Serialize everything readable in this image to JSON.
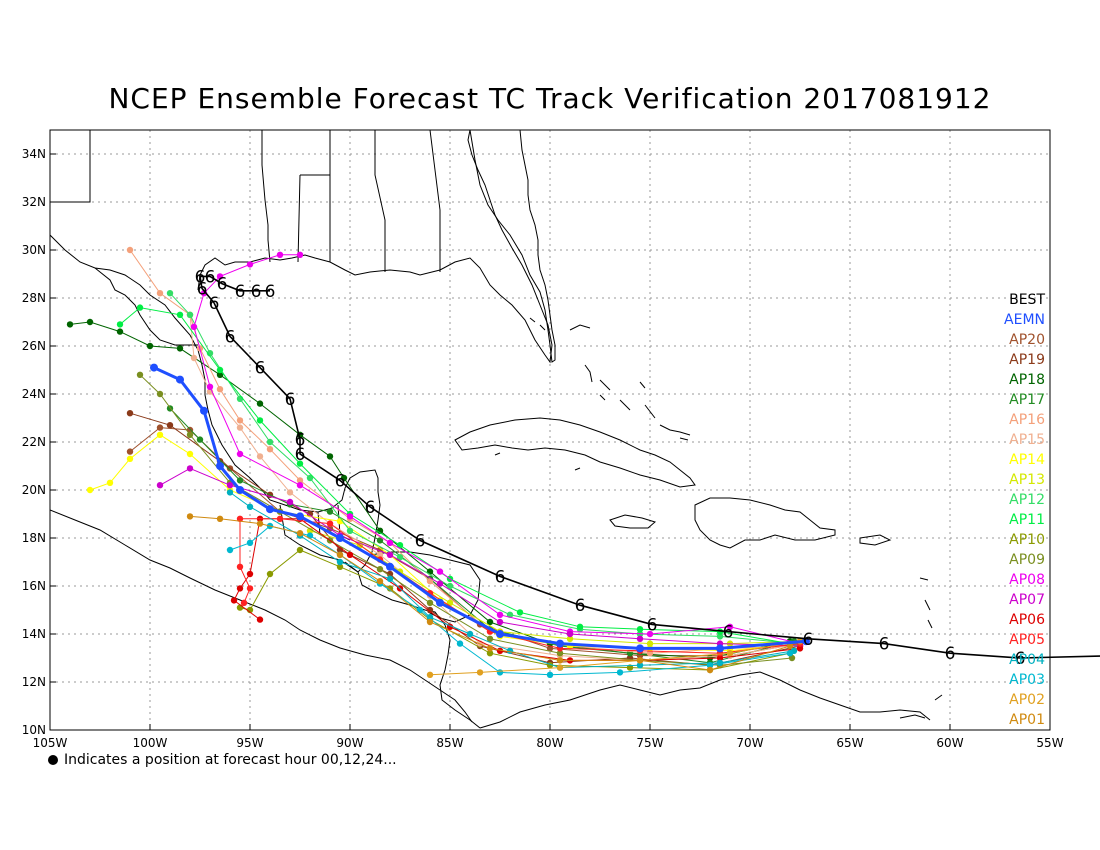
{
  "title": "NCEP Ensemble Forecast TC Track Verification 2017081912",
  "footnote": "Indicates a position at forecast hour 00,12,24...",
  "axes": {
    "lon_ticks": [
      "105W",
      "100W",
      "95W",
      "90W",
      "85W",
      "80W",
      "75W",
      "70W",
      "65W",
      "60W",
      "55W"
    ],
    "lat_ticks": [
      "10N",
      "12N",
      "14N",
      "16N",
      "18N",
      "20N",
      "22N",
      "24N",
      "26N",
      "28N",
      "30N",
      "32N",
      "34N"
    ],
    "lon_range": [
      -105,
      -55
    ],
    "lat_range": [
      10,
      35
    ],
    "grid": true
  },
  "legend": [
    {
      "label": "BEST",
      "color": "#000000"
    },
    {
      "label": "AEMN",
      "color": "#1f4fff"
    },
    {
      "label": "AP20",
      "color": "#a0522d"
    },
    {
      "label": "AP19",
      "color": "#8b3a1a"
    },
    {
      "label": "AP18",
      "color": "#006400"
    },
    {
      "label": "AP17",
      "color": "#228b22"
    },
    {
      "label": "AP16",
      "color": "#f4a07a"
    },
    {
      "label": "AP15",
      "color": "#f0b090"
    },
    {
      "label": "AP14",
      "color": "#ffff00"
    },
    {
      "label": "AP13",
      "color": "#d4e800"
    },
    {
      "label": "AP12",
      "color": "#33dd66"
    },
    {
      "label": "AP11",
      "color": "#00ee44"
    },
    {
      "label": "AP10",
      "color": "#8a9a00"
    },
    {
      "label": "AP09",
      "color": "#7a8f20"
    },
    {
      "label": "AP08",
      "color": "#ee00ee"
    },
    {
      "label": "AP07",
      "color": "#cc00cc"
    },
    {
      "label": "AP06",
      "color": "#dd0000"
    },
    {
      "label": "AP05",
      "color": "#ff2222"
    },
    {
      "label": "AP04",
      "color": "#00b0c0"
    },
    {
      "label": "AP03",
      "color": "#00b8d0"
    },
    {
      "label": "AP02",
      "color": "#e0a020"
    },
    {
      "label": "AP01",
      "color": "#d08a10"
    }
  ],
  "best_track": {
    "color": "#000000",
    "points": [
      [
        -51.5,
        13.1
      ],
      [
        -56.5,
        13.0
      ],
      [
        -60.0,
        13.2
      ],
      [
        -63.3,
        13.6
      ],
      [
        -67.1,
        13.8
      ],
      [
        -71.1,
        14.1
      ],
      [
        -74.9,
        14.4
      ],
      [
        -78.5,
        15.2
      ],
      [
        -82.5,
        16.4
      ],
      [
        -86.5,
        17.9
      ],
      [
        -89.0,
        19.3
      ],
      [
        -90.5,
        20.4
      ],
      [
        -92.5,
        21.5
      ],
      [
        -92.5,
        22.1
      ],
      [
        -93.0,
        23.8
      ],
      [
        -94.5,
        25.1
      ],
      [
        -96.0,
        26.4
      ],
      [
        -96.8,
        27.8
      ],
      [
        -97.4,
        28.4
      ],
      [
        -97.5,
        28.9
      ],
      [
        -97.0,
        28.9
      ],
      [
        -96.4,
        28.6
      ],
      [
        -95.5,
        28.3
      ],
      [
        -94.7,
        28.3
      ],
      [
        -94.0,
        28.3
      ]
    ]
  },
  "ensemble_tracks": [
    {
      "name": "AEMN",
      "color": "#1f4fff",
      "points": [
        [
          -67.2,
          13.7
        ],
        [
          -71.5,
          13.4
        ],
        [
          -75.5,
          13.4
        ],
        [
          -79.5,
          13.6
        ],
        [
          -82.5,
          14.0
        ],
        [
          -85.5,
          15.3
        ],
        [
          -88.0,
          16.8
        ],
        [
          -90.5,
          18.0
        ],
        [
          -92.5,
          18.9
        ],
        [
          -94.0,
          19.2
        ],
        [
          -95.5,
          20.0
        ],
        [
          -96.5,
          21.0
        ],
        [
          -97.3,
          23.3
        ],
        [
          -98.5,
          24.6
        ],
        [
          -99.8,
          25.1
        ]
      ]
    },
    {
      "name": "AP20",
      "color": "#a0522d",
      "points": [
        [
          -67.5,
          13.6
        ],
        [
          -71.0,
          13.1
        ],
        [
          -75.5,
          13.1
        ],
        [
          -80.0,
          13.4
        ],
        [
          -83.5,
          14.4
        ],
        [
          -86.0,
          16.3
        ],
        [
          -88.5,
          17.5
        ],
        [
          -91.0,
          18.4
        ],
        [
          -93.5,
          19.1
        ],
        [
          -96.0,
          20.9
        ],
        [
          -98.0,
          22.5
        ],
        [
          -99.5,
          22.6
        ],
        [
          -101.0,
          21.6
        ]
      ]
    },
    {
      "name": "AP19",
      "color": "#8b3a1a",
      "points": [
        [
          -67.5,
          13.5
        ],
        [
          -72.0,
          12.7
        ],
        [
          -76.0,
          13.0
        ],
        [
          -80.0,
          12.8
        ],
        [
          -83.5,
          13.5
        ],
        [
          -86.0,
          15.0
        ],
        [
          -88.0,
          16.5
        ],
        [
          -90.5,
          17.5
        ],
        [
          -92.0,
          19.0
        ],
        [
          -94.0,
          19.8
        ],
        [
          -96.5,
          21.2
        ],
        [
          -99.0,
          22.7
        ],
        [
          -101.0,
          23.2
        ]
      ]
    },
    {
      "name": "AP18",
      "color": "#006400",
      "points": [
        [
          -68.0,
          13.7
        ],
        [
          -72.0,
          13.0
        ],
        [
          -76.0,
          13.2
        ],
        [
          -80.0,
          13.6
        ],
        [
          -83.0,
          14.5
        ],
        [
          -86.0,
          16.6
        ],
        [
          -88.5,
          18.3
        ],
        [
          -90.3,
          20.5
        ],
        [
          -91.0,
          21.4
        ],
        [
          -92.5,
          22.3
        ],
        [
          -94.5,
          23.6
        ],
        [
          -96.5,
          24.8
        ],
        [
          -98.5,
          25.9
        ],
        [
          -100.0,
          26.0
        ],
        [
          -101.5,
          26.6
        ],
        [
          -103.0,
          27.0
        ],
        [
          -104.0,
          26.9
        ]
      ]
    },
    {
      "name": "AP17",
      "color": "#228b22",
      "points": [
        [
          -67.8,
          13.7
        ],
        [
          -72.0,
          12.8
        ],
        [
          -76.0,
          13.2
        ],
        [
          -79.5,
          13.5
        ],
        [
          -83.0,
          14.2
        ],
        [
          -86.0,
          16.3
        ],
        [
          -88.5,
          17.9
        ],
        [
          -91.0,
          19.1
        ],
        [
          -93.0,
          19.4
        ],
        [
          -95.5,
          20.4
        ],
        [
          -97.5,
          22.1
        ],
        [
          -99.0,
          23.4
        ]
      ]
    },
    {
      "name": "AP16",
      "color": "#f4a07a",
      "points": [
        [
          -67.5,
          13.5
        ],
        [
          -71.0,
          13.4
        ],
        [
          -75.0,
          13.2
        ],
        [
          -79.0,
          13.5
        ],
        [
          -83.0,
          14.1
        ],
        [
          -86.0,
          16.2
        ],
        [
          -88.0,
          17.8
        ],
        [
          -90.0,
          18.8
        ],
        [
          -92.5,
          20.4
        ],
        [
          -94.0,
          21.7
        ],
        [
          -95.5,
          22.9
        ],
        [
          -96.5,
          24.2
        ],
        [
          -97.5,
          25.9
        ],
        [
          -98.0,
          27.3
        ],
        [
          -99.5,
          28.2
        ],
        [
          -101.0,
          30.0
        ]
      ]
    },
    {
      "name": "AP15",
      "color": "#f0b090",
      "points": [
        [
          -67.5,
          13.6
        ],
        [
          -71.0,
          13.1
        ],
        [
          -75.5,
          12.9
        ],
        [
          -79.5,
          13.1
        ],
        [
          -83.5,
          13.6
        ],
        [
          -86.0,
          15.6
        ],
        [
          -88.5,
          17.3
        ],
        [
          -91.0,
          18.6
        ],
        [
          -93.0,
          19.9
        ],
        [
          -94.5,
          21.4
        ],
        [
          -95.5,
          22.6
        ],
        [
          -97.0,
          24.1
        ],
        [
          -97.8,
          25.5
        ],
        [
          -98.0,
          27.3
        ]
      ]
    },
    {
      "name": "AP14",
      "color": "#ffff00",
      "points": [
        [
          -67.5,
          13.6
        ],
        [
          -71.0,
          13.3
        ],
        [
          -75.0,
          13.4
        ],
        [
          -79.0,
          13.5
        ],
        [
          -82.5,
          13.9
        ],
        [
          -85.5,
          15.4
        ],
        [
          -88.0,
          17.3
        ],
        [
          -90.5,
          18.7
        ],
        [
          -93.5,
          19.1
        ],
        [
          -96.0,
          20.0
        ],
        [
          -98.0,
          21.5
        ],
        [
          -99.5,
          22.3
        ],
        [
          -101.0,
          21.3
        ],
        [
          -102.0,
          20.3
        ],
        [
          -103.0,
          20.0
        ]
      ]
    },
    {
      "name": "AP13",
      "color": "#d4e800",
      "points": [
        [
          -67.5,
          13.7
        ],
        [
          -71.0,
          13.6
        ],
        [
          -75.0,
          13.6
        ],
        [
          -79.0,
          13.8
        ],
        [
          -82.5,
          14.1
        ],
        [
          -85.0,
          15.3
        ],
        [
          -87.5,
          16.6
        ],
        [
          -89.5,
          17.7
        ],
        [
          -92.0,
          18.3
        ]
      ]
    },
    {
      "name": "AP12",
      "color": "#33dd66",
      "points": [
        [
          -67.7,
          13.6
        ],
        [
          -71.5,
          13.9
        ],
        [
          -75.5,
          14.0
        ],
        [
          -78.5,
          14.2
        ],
        [
          -82.0,
          14.8
        ],
        [
          -85.0,
          16.0
        ],
        [
          -87.5,
          17.2
        ],
        [
          -90.0,
          18.3
        ],
        [
          -92.0,
          20.5
        ],
        [
          -94.0,
          22.0
        ],
        [
          -95.5,
          23.8
        ],
        [
          -97.0,
          25.7
        ],
        [
          -98.0,
          27.3
        ],
        [
          -99.0,
          28.2
        ]
      ]
    },
    {
      "name": "AP11",
      "color": "#00ee44",
      "points": [
        [
          -68.0,
          13.6
        ],
        [
          -71.5,
          14.1
        ],
        [
          -75.5,
          14.2
        ],
        [
          -78.5,
          14.3
        ],
        [
          -81.5,
          14.9
        ],
        [
          -85.0,
          16.3
        ],
        [
          -87.5,
          17.7
        ],
        [
          -90.0,
          19.0
        ],
        [
          -92.5,
          21.1
        ],
        [
          -94.5,
          22.9
        ],
        [
          -96.5,
          25.0
        ],
        [
          -98.5,
          27.3
        ],
        [
          -100.5,
          27.6
        ],
        [
          -101.5,
          26.9
        ]
      ]
    },
    {
      "name": "AP10",
      "color": "#8a9a00",
      "points": [
        [
          -68.0,
          13.2
        ],
        [
          -72.0,
          12.5
        ],
        [
          -76.0,
          12.6
        ],
        [
          -80.0,
          12.7
        ],
        [
          -83.0,
          13.2
        ],
        [
          -86.0,
          14.6
        ],
        [
          -88.0,
          15.9
        ],
        [
          -90.5,
          16.8
        ],
        [
          -92.5,
          17.5
        ],
        [
          -94.0,
          16.5
        ],
        [
          -95.0,
          15.0
        ],
        [
          -95.5,
          15.1
        ]
      ]
    },
    {
      "name": "AP09",
      "color": "#7a8f20",
      "points": [
        [
          -67.9,
          13.0
        ],
        [
          -71.5,
          12.7
        ],
        [
          -75.5,
          12.9
        ],
        [
          -79.5,
          13.2
        ],
        [
          -83.0,
          13.8
        ],
        [
          -86.0,
          15.3
        ],
        [
          -88.5,
          16.7
        ],
        [
          -91.0,
          17.9
        ],
        [
          -93.5,
          19.1
        ],
        [
          -96.0,
          20.3
        ],
        [
          -98.0,
          22.3
        ],
        [
          -99.5,
          24.0
        ],
        [
          -100.5,
          24.8
        ]
      ]
    },
    {
      "name": "AP08",
      "color": "#ee00ee",
      "points": [
        [
          -67.5,
          13.6
        ],
        [
          -71.0,
          14.3
        ],
        [
          -75.0,
          14.0
        ],
        [
          -79.0,
          14.1
        ],
        [
          -82.5,
          14.8
        ],
        [
          -85.5,
          16.6
        ],
        [
          -88.0,
          17.8
        ],
        [
          -90.0,
          18.9
        ],
        [
          -92.5,
          20.2
        ],
        [
          -95.5,
          21.5
        ],
        [
          -97.0,
          24.3
        ],
        [
          -97.8,
          26.8
        ],
        [
          -97.3,
          28.2
        ],
        [
          -96.5,
          28.9
        ],
        [
          -95.0,
          29.4
        ],
        [
          -93.5,
          29.8
        ],
        [
          -92.5,
          29.8
        ]
      ]
    },
    {
      "name": "AP07",
      "color": "#cc00cc",
      "points": [
        [
          -67.5,
          13.5
        ],
        [
          -71.5,
          13.6
        ],
        [
          -75.5,
          13.8
        ],
        [
          -79.0,
          14.0
        ],
        [
          -82.5,
          14.5
        ],
        [
          -85.5,
          16.1
        ],
        [
          -88.0,
          17.3
        ],
        [
          -90.5,
          18.1
        ],
        [
          -93.0,
          19.5
        ],
        [
          -96.0,
          20.2
        ],
        [
          -98.0,
          20.9
        ],
        [
          -99.5,
          20.2
        ]
      ]
    },
    {
      "name": "AP06",
      "color": "#dd0000",
      "points": [
        [
          -67.5,
          13.4
        ],
        [
          -71.5,
          13.0
        ],
        [
          -75.5,
          12.9
        ],
        [
          -79.0,
          12.9
        ],
        [
          -82.5,
          13.3
        ],
        [
          -85.0,
          14.3
        ],
        [
          -87.5,
          15.9
        ],
        [
          -90.0,
          17.3
        ],
        [
          -92.5,
          18.8
        ],
        [
          -94.5,
          18.8
        ],
        [
          -95.0,
          16.5
        ],
        [
          -95.5,
          15.9
        ],
        [
          -95.8,
          15.4
        ],
        [
          -94.5,
          14.6
        ]
      ]
    },
    {
      "name": "AP05",
      "color": "#ff2222",
      "points": [
        [
          -67.5,
          13.6
        ],
        [
          -71.5,
          13.2
        ],
        [
          -75.5,
          13.3
        ],
        [
          -79.5,
          13.4
        ],
        [
          -83.0,
          14.1
        ],
        [
          -86.0,
          15.7
        ],
        [
          -88.5,
          17.1
        ],
        [
          -91.0,
          18.6
        ],
        [
          -93.5,
          18.8
        ],
        [
          -95.5,
          18.8
        ],
        [
          -95.5,
          16.8
        ],
        [
          -95.0,
          15.9
        ],
        [
          -95.3,
          15.3
        ]
      ]
    },
    {
      "name": "AP04",
      "color": "#00b0c0",
      "points": [
        [
          -67.8,
          13.3
        ],
        [
          -71.5,
          12.8
        ],
        [
          -75.5,
          12.7
        ],
        [
          -79.5,
          12.6
        ],
        [
          -82.0,
          13.3
        ],
        [
          -84.0,
          14.0
        ],
        [
          -86.0,
          14.7
        ],
        [
          -88.0,
          16.3
        ],
        [
          -90.5,
          17.0
        ],
        [
          -92.5,
          18.1
        ],
        [
          -95.0,
          19.3
        ],
        [
          -96.0,
          19.9
        ]
      ]
    },
    {
      "name": "AP03",
      "color": "#00b8d0",
      "points": [
        [
          -68.0,
          13.2
        ],
        [
          -72.0,
          12.7
        ],
        [
          -76.5,
          12.4
        ],
        [
          -80.0,
          12.3
        ],
        [
          -82.5,
          12.4
        ],
        [
          -84.5,
          13.6
        ],
        [
          -86.5,
          15.0
        ],
        [
          -88.5,
          16.1
        ],
        [
          -90.5,
          17.3
        ],
        [
          -92.0,
          18.1
        ],
        [
          -94.0,
          18.5
        ],
        [
          -95.0,
          17.8
        ],
        [
          -96.0,
          17.5
        ]
      ]
    },
    {
      "name": "AP02",
      "color": "#e0a020",
      "points": [
        [
          -67.5,
          13.7
        ],
        [
          -71.0,
          13.2
        ],
        [
          -75.5,
          12.9
        ],
        [
          -79.5,
          12.6
        ],
        [
          -83.5,
          12.4
        ],
        [
          -86.0,
          12.3
        ]
      ]
    },
    {
      "name": "AP01",
      "color": "#d08a10",
      "points": [
        [
          -68.0,
          13.5
        ],
        [
          -72.0,
          12.5
        ],
        [
          -75.5,
          12.9
        ],
        [
          -79.5,
          12.9
        ],
        [
          -83.0,
          13.4
        ],
        [
          -86.0,
          14.5
        ],
        [
          -88.5,
          16.2
        ],
        [
          -90.5,
          17.3
        ],
        [
          -92.5,
          18.2
        ],
        [
          -94.5,
          18.6
        ],
        [
          -96.5,
          18.8
        ],
        [
          -98.0,
          18.9
        ]
      ]
    }
  ]
}
